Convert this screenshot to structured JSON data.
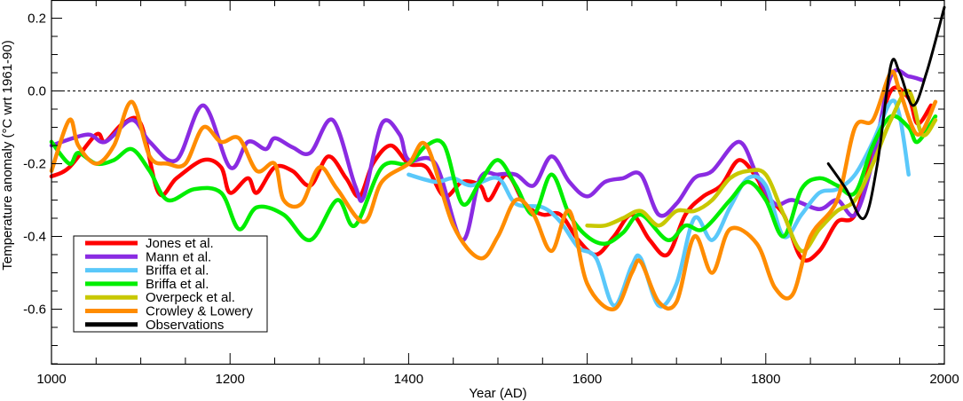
{
  "chart_data": {
    "type": "line",
    "title": "",
    "xlabel": "Year  (AD)",
    "ylabel": "Temperature anomaly  (°C wrt 1961-90)",
    "xlim": [
      1000,
      2000
    ],
    "ylim": [
      -0.75,
      0.25
    ],
    "xticks": [
      1000,
      1200,
      1400,
      1600,
      1800,
      2000
    ],
    "yticks": [
      0.2,
      0.0,
      -0.2,
      -0.4,
      -0.6
    ],
    "ytick_labels": [
      "0.2",
      "0.0",
      "-0.2",
      "-0.4",
      "-0.6"
    ],
    "zero_line": "dotted",
    "grid": false,
    "legend_placement": "bottom-left",
    "series": [
      {
        "name": "Jones et al.",
        "color": "#ff0000",
        "x": [
          1000,
          1020,
          1050,
          1060,
          1080,
          1100,
          1120,
          1140,
          1170,
          1190,
          1200,
          1220,
          1230,
          1250,
          1270,
          1290,
          1310,
          1330,
          1345,
          1360,
          1380,
          1400,
          1420,
          1440,
          1460,
          1480,
          1490,
          1510,
          1530,
          1550,
          1570,
          1590,
          1610,
          1630,
          1650,
          1670,
          1690,
          1710,
          1730,
          1750,
          1770,
          1790,
          1800,
          1820,
          1840,
          1860,
          1880,
          1900,
          1920,
          1940,
          1960,
          1970,
          1985
        ],
        "y": [
          -0.235,
          -0.21,
          -0.12,
          -0.14,
          -0.09,
          -0.09,
          -0.28,
          -0.24,
          -0.19,
          -0.21,
          -0.28,
          -0.24,
          -0.28,
          -0.21,
          -0.22,
          -0.26,
          -0.18,
          -0.24,
          -0.29,
          -0.2,
          -0.15,
          -0.2,
          -0.21,
          -0.29,
          -0.25,
          -0.26,
          -0.3,
          -0.23,
          -0.31,
          -0.34,
          -0.34,
          -0.41,
          -0.45,
          -0.4,
          -0.34,
          -0.41,
          -0.45,
          -0.34,
          -0.29,
          -0.26,
          -0.19,
          -0.24,
          -0.29,
          -0.34,
          -0.46,
          -0.44,
          -0.36,
          -0.34,
          -0.17,
          0.0,
          -0.02,
          -0.09,
          -0.04
        ]
      },
      {
        "name": "Mann et al.",
        "color": "#8a2be2",
        "x": [
          1000,
          1040,
          1060,
          1090,
          1110,
          1140,
          1170,
          1200,
          1220,
          1240,
          1250,
          1270,
          1290,
          1315,
          1340,
          1350,
          1370,
          1390,
          1400,
          1430,
          1460,
          1480,
          1500,
          1520,
          1540,
          1560,
          1580,
          1600,
          1620,
          1640,
          1660,
          1680,
          1700,
          1720,
          1740,
          1770,
          1790,
          1810,
          1830,
          1860,
          1880,
          1900,
          1920,
          1940,
          1960,
          1975
        ],
        "y": [
          -0.15,
          -0.12,
          -0.14,
          -0.08,
          -0.14,
          -0.19,
          -0.04,
          -0.21,
          -0.14,
          -0.16,
          -0.13,
          -0.155,
          -0.17,
          -0.08,
          -0.26,
          -0.29,
          -0.09,
          -0.12,
          -0.19,
          -0.2,
          -0.41,
          -0.24,
          -0.23,
          -0.23,
          -0.26,
          -0.18,
          -0.25,
          -0.29,
          -0.25,
          -0.24,
          -0.23,
          -0.34,
          -0.31,
          -0.24,
          -0.22,
          -0.14,
          -0.23,
          -0.31,
          -0.3,
          -0.325,
          -0.3,
          -0.34,
          -0.19,
          0.04,
          0.04,
          0.03
        ]
      },
      {
        "name": "Briffa et al.",
        "color": "#5ac8fa",
        "x": [
          1400,
          1430,
          1450,
          1470,
          1500,
          1520,
          1550,
          1570,
          1590,
          1610,
          1630,
          1650,
          1660,
          1680,
          1700,
          1720,
          1740,
          1760,
          1780,
          1800,
          1820,
          1840,
          1860,
          1880,
          1900,
          1920,
          1940,
          1950,
          1960
        ],
        "y": [
          -0.23,
          -0.25,
          -0.24,
          -0.26,
          -0.24,
          -0.31,
          -0.32,
          -0.36,
          -0.43,
          -0.46,
          -0.59,
          -0.48,
          -0.46,
          -0.59,
          -0.53,
          -0.35,
          -0.41,
          -0.32,
          -0.24,
          -0.26,
          -0.4,
          -0.34,
          -0.28,
          -0.27,
          -0.23,
          -0.14,
          -0.03,
          -0.07,
          -0.23
        ]
      },
      {
        "name": "Briffa et al.",
        "color": "#00ee00",
        "x": [
          1000,
          1020,
          1030,
          1050,
          1070,
          1090,
          1110,
          1130,
          1160,
          1190,
          1210,
          1230,
          1260,
          1290,
          1320,
          1340,
          1370,
          1400,
          1420,
          1440,
          1460,
          1480,
          1500,
          1520,
          1540,
          1560,
          1580,
          1600,
          1620,
          1640,
          1660,
          1690,
          1710,
          1730,
          1760,
          1780,
          1800,
          1820,
          1840,
          1860,
          1880,
          1900,
          1920,
          1940,
          1960,
          1970,
          1990
        ],
        "y": [
          -0.14,
          -0.2,
          -0.17,
          -0.2,
          -0.19,
          -0.16,
          -0.22,
          -0.3,
          -0.27,
          -0.28,
          -0.38,
          -0.32,
          -0.34,
          -0.41,
          -0.3,
          -0.37,
          -0.21,
          -0.2,
          -0.15,
          -0.15,
          -0.31,
          -0.25,
          -0.19,
          -0.26,
          -0.34,
          -0.23,
          -0.34,
          -0.4,
          -0.42,
          -0.39,
          -0.34,
          -0.41,
          -0.37,
          -0.38,
          -0.3,
          -0.25,
          -0.3,
          -0.4,
          -0.27,
          -0.24,
          -0.26,
          -0.28,
          -0.15,
          -0.07,
          -0.1,
          -0.14,
          -0.07
        ]
      },
      {
        "name": "Overpeck et al.",
        "color": "#c8c800",
        "x": [
          1600,
          1620,
          1640,
          1660,
          1680,
          1700,
          1720,
          1740,
          1760,
          1780,
          1800,
          1820,
          1840,
          1860,
          1880,
          1900,
          1920,
          1940,
          1960,
          1975,
          1990
        ],
        "y": [
          -0.37,
          -0.37,
          -0.35,
          -0.33,
          -0.37,
          -0.33,
          -0.33,
          -0.3,
          -0.24,
          -0.22,
          -0.23,
          -0.34,
          -0.44,
          -0.38,
          -0.33,
          -0.3,
          -0.2,
          -0.08,
          0.0,
          -0.12,
          -0.08
        ]
      },
      {
        "name": "Crowley & Lowery",
        "color": "#ff8c00",
        "x": [
          1000,
          1020,
          1030,
          1050,
          1070,
          1090,
          1110,
          1130,
          1150,
          1170,
          1190,
          1210,
          1230,
          1250,
          1260,
          1280,
          1300,
          1320,
          1350,
          1370,
          1400,
          1420,
          1450,
          1480,
          1500,
          1520,
          1540,
          1560,
          1580,
          1600,
          1630,
          1650,
          1660,
          1680,
          1700,
          1720,
          1740,
          1760,
          1790,
          1810,
          1830,
          1850,
          1880,
          1900,
          1920,
          1940,
          1950,
          1970,
          1990
        ],
        "y": [
          -0.22,
          -0.08,
          -0.15,
          -0.2,
          -0.15,
          -0.03,
          -0.18,
          -0.2,
          -0.2,
          -0.1,
          -0.14,
          -0.13,
          -0.22,
          -0.2,
          -0.3,
          -0.31,
          -0.21,
          -0.27,
          -0.36,
          -0.25,
          -0.2,
          -0.15,
          -0.37,
          -0.46,
          -0.4,
          -0.3,
          -0.34,
          -0.44,
          -0.33,
          -0.53,
          -0.6,
          -0.5,
          -0.47,
          -0.58,
          -0.58,
          -0.4,
          -0.5,
          -0.38,
          -0.42,
          -0.54,
          -0.56,
          -0.4,
          -0.3,
          -0.1,
          -0.08,
          0.05,
          0.0,
          -0.12,
          -0.03
        ]
      },
      {
        "name": "Observations",
        "color": "#000000",
        "x": [
          1870,
          1890,
          1910,
          1925,
          1940,
          1950,
          1965,
          1980,
          2000
        ],
        "y": [
          -0.2,
          -0.27,
          -0.35,
          -0.2,
          0.07,
          0.05,
          -0.04,
          0.05,
          0.23
        ]
      }
    ]
  }
}
